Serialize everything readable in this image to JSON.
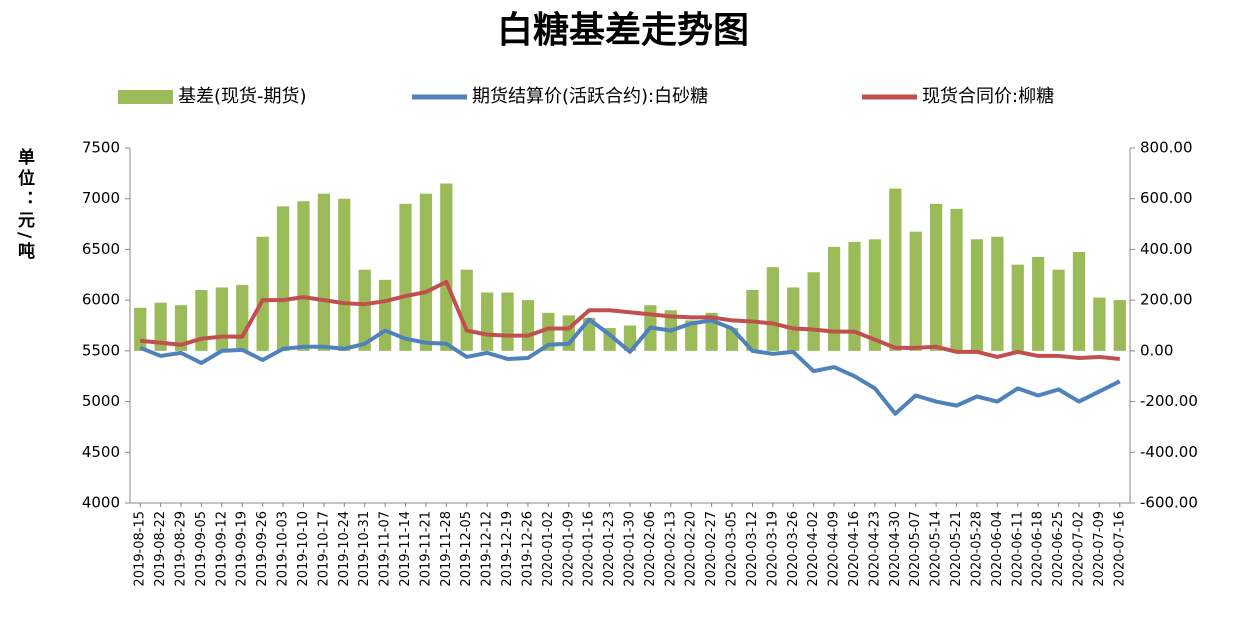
{
  "chart_data": {
    "type": "bar_line",
    "title": "白糖基差走势图",
    "y_label": "单位：元/吨",
    "categories": [
      "2019-08-15",
      "2019-08-22",
      "2019-08-29",
      "2019-09-05",
      "2019-09-12",
      "2019-09-19",
      "2019-09-26",
      "2019-10-03",
      "2019-10-10",
      "2019-10-17",
      "2019-10-24",
      "2019-10-31",
      "2019-11-07",
      "2019-11-14",
      "2019-11-21",
      "2019-11-28",
      "2019-12-05",
      "2019-12-12",
      "2019-12-19",
      "2019-12-26",
      "2020-01-02",
      "2020-01-09",
      "2020-01-16",
      "2020-01-23",
      "2020-01-30",
      "2020-02-06",
      "2020-02-13",
      "2020-02-20",
      "2020-02-27",
      "2020-03-05",
      "2020-03-12",
      "2020-03-19",
      "2020-03-26",
      "2020-04-02",
      "2020-04-09",
      "2020-04-16",
      "2020-04-23",
      "2020-04-30",
      "2020-05-07",
      "2020-05-14",
      "2020-05-21",
      "2020-05-28",
      "2020-06-04",
      "2020-06-11",
      "2020-06-18",
      "2020-06-25",
      "2020-07-02",
      "2020-07-09",
      "2020-07-16"
    ],
    "series": [
      {
        "name": "基差(现货-期货)",
        "kind": "bar",
        "axis": "y2",
        "color": "#9bbb59",
        "values": [
          170,
          190,
          180,
          240,
          250,
          260,
          450,
          570,
          590,
          620,
          600,
          320,
          280,
          580,
          620,
          660,
          320,
          230,
          230,
          200,
          150,
          140,
          130,
          90,
          100,
          180,
          160,
          120,
          150,
          90,
          240,
          330,
          250,
          310,
          410,
          430,
          440,
          640,
          470,
          580,
          560,
          440,
          450,
          340,
          370,
          320,
          390,
          210,
          200
        ]
      },
      {
        "name": "期货结算价(活跃合约):白砂糖",
        "kind": "line",
        "color": "#4f81bd",
        "values": [
          5530,
          5450,
          5480,
          5380,
          5500,
          5510,
          5410,
          5520,
          5540,
          5540,
          5520,
          5570,
          5700,
          5620,
          5580,
          5570,
          5440,
          5480,
          5420,
          5430,
          5560,
          5570,
          5810,
          5660,
          5490,
          5730,
          5700,
          5770,
          5800,
          5720,
          5500,
          5470,
          5490,
          5300,
          5340,
          5250,
          5130,
          4880,
          5060,
          5000,
          4960,
          5050,
          5000,
          5130,
          5060,
          5120,
          5000,
          5100,
          5200
        ]
      },
      {
        "name": "现货合同价:柳糖",
        "kind": "line",
        "color": "#c0504d",
        "values": [
          5600,
          5580,
          5560,
          5620,
          5640,
          5640,
          6000,
          6000,
          6030,
          6000,
          5970,
          5960,
          5990,
          6040,
          6080,
          6180,
          5700,
          5660,
          5650,
          5650,
          5720,
          5720,
          5900,
          5900,
          5880,
          5860,
          5840,
          5830,
          5830,
          5800,
          5790,
          5770,
          5720,
          5710,
          5690,
          5690,
          5610,
          5530,
          5530,
          5540,
          5490,
          5490,
          5440,
          5490,
          5450,
          5450,
          5430,
          5440,
          5420
        ]
      }
    ],
    "ylim": [
      4000,
      7500
    ],
    "yticks": [
      4000,
      4500,
      5000,
      5500,
      6000,
      6500,
      7000,
      7500
    ],
    "y2lim": [
      -600,
      800
    ],
    "y2ticks": [
      {
        "value": -600,
        "label": "-600.00"
      },
      {
        "value": -400,
        "label": "-400.00"
      },
      {
        "value": -200,
        "label": "-200.00"
      },
      {
        "value": 0,
        "label": "0.00"
      },
      {
        "value": 200,
        "label": "200.00"
      },
      {
        "value": 400,
        "label": "400.00"
      },
      {
        "value": 600,
        "label": "600.00"
      },
      {
        "value": 800,
        "label": "800.00"
      }
    ]
  }
}
